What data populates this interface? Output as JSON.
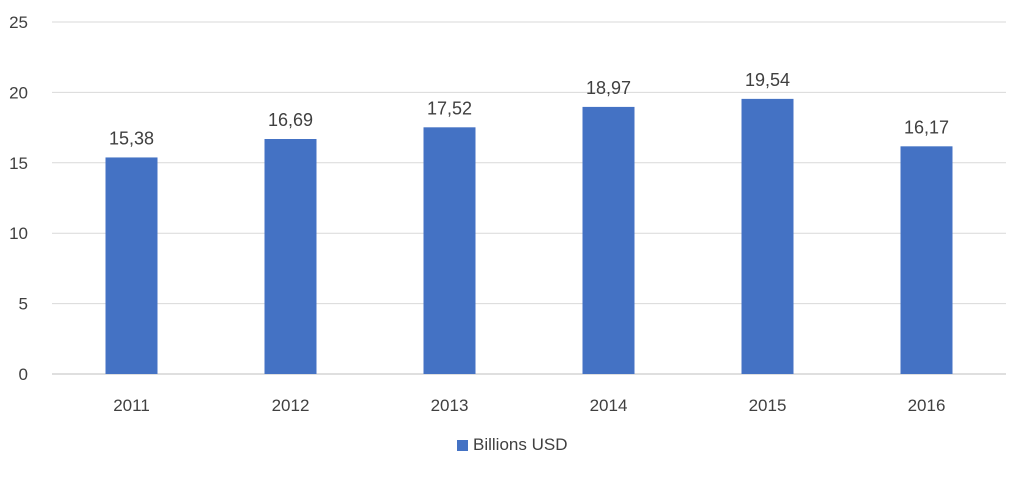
{
  "chart_data": {
    "type": "bar",
    "categories": [
      "2011",
      "2012",
      "2013",
      "2014",
      "2015",
      "2016"
    ],
    "series": [
      {
        "name": "Billions USD",
        "values": [
          15.38,
          16.69,
          17.52,
          18.97,
          19.54,
          16.17
        ],
        "labels": [
          "15,38",
          "16,69",
          "17,52",
          "18,97",
          "19,54",
          "16,17"
        ],
        "color": "#4472c4"
      }
    ],
    "ylim": [
      0,
      25
    ],
    "yticks": [
      0,
      5,
      10,
      15,
      20,
      25
    ],
    "grid": true,
    "gridColor": "#d9d9d9",
    "legend_position": "bottom"
  }
}
